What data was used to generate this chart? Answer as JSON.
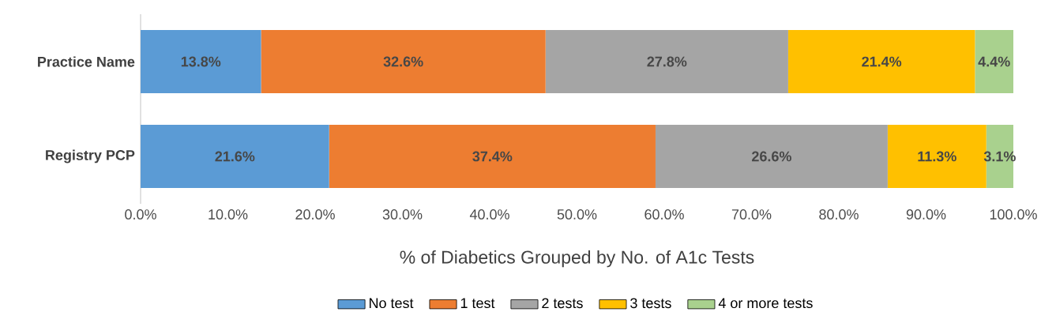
{
  "chart_data": {
    "type": "bar",
    "orientation": "horizontal",
    "stacked": true,
    "xlabel": "% of Diabetics Grouped by No. of A1c Tests",
    "categories": [
      "Practice Name",
      "Registry PCP"
    ],
    "series": [
      {
        "name": "No test",
        "color": "#5b9bd5",
        "values": [
          13.8,
          21.6
        ],
        "value_labels": [
          "13.8%",
          "21.6%"
        ]
      },
      {
        "name": "1 test",
        "color": "#ed7d31",
        "values": [
          32.6,
          37.4
        ],
        "value_labels": [
          "32.6%",
          "37.4%"
        ]
      },
      {
        "name": "2 tests",
        "color": "#a5a5a5",
        "values": [
          27.8,
          26.6
        ],
        "value_labels": [
          "27.8%",
          "26.6%"
        ]
      },
      {
        "name": "3 tests",
        "color": "#ffc000",
        "values": [
          21.4,
          11.3
        ],
        "value_labels": [
          "21.4%",
          "11.3%"
        ]
      },
      {
        "name": "4 or more tests",
        "color": "#a9d18e",
        "values": [
          4.4,
          3.1
        ],
        "value_labels": [
          "4.4%",
          "3.1%"
        ]
      }
    ],
    "xlim": [
      0,
      100
    ],
    "xticks": [
      {
        "value": 0,
        "label": "0.0%"
      },
      {
        "value": 10,
        "label": "10.0%"
      },
      {
        "value": 20,
        "label": "20.0%"
      },
      {
        "value": 30,
        "label": "30.0%"
      },
      {
        "value": 40,
        "label": "40.0%"
      },
      {
        "value": 50,
        "label": "50.0%"
      },
      {
        "value": 60,
        "label": "60.0%"
      },
      {
        "value": 70,
        "label": "70.0%"
      },
      {
        "value": 80,
        "label": "80.0%"
      },
      {
        "value": 90,
        "label": "90.0%"
      },
      {
        "value": 100,
        "label": "100.0%"
      }
    ],
    "legend": "bottom",
    "grid": false
  }
}
